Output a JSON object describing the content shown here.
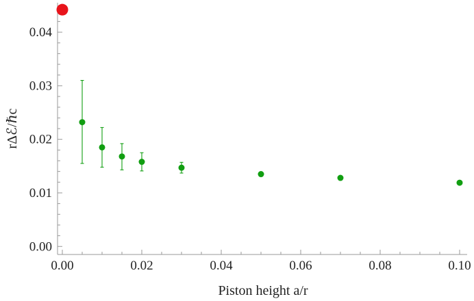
{
  "chart_data": {
    "type": "scatter",
    "xlabel": "Piston height a/r",
    "ylabel": "rΔℰ/ℏc",
    "xlim": [
      0.0,
      0.1
    ],
    "ylim": [
      -0.0015,
      0.0455
    ],
    "x_ticks": [
      "0.00",
      "0.02",
      "0.04",
      "0.06",
      "0.08",
      "0.10"
    ],
    "y_ticks": [
      "0.00",
      "0.01",
      "0.02",
      "0.03",
      "0.04"
    ],
    "grid": false,
    "series": [
      {
        "color": "#e8141b",
        "marker": "large-circle",
        "points": [
          {
            "x": 0.0,
            "y": 0.0442
          }
        ]
      },
      {
        "color": "#119e11",
        "marker": "circle-with-error-bars",
        "points": [
          {
            "x": 0.005,
            "y": 0.0232,
            "err_low": 0.0155,
            "err_high": 0.031
          },
          {
            "x": 0.01,
            "y": 0.0185,
            "err_low": 0.0148,
            "err_high": 0.0222
          },
          {
            "x": 0.015,
            "y": 0.0168,
            "err_low": 0.0143,
            "err_high": 0.0192
          },
          {
            "x": 0.02,
            "y": 0.0158,
            "err_low": 0.0141,
            "err_high": 0.0175
          },
          {
            "x": 0.03,
            "y": 0.0147,
            "err_low": 0.0137,
            "err_high": 0.0157
          },
          {
            "x": 0.05,
            "y": 0.0135,
            "err_low": 0.0131,
            "err_high": 0.0139
          },
          {
            "x": 0.07,
            "y": 0.0128,
            "err_low": 0.0126,
            "err_high": 0.013
          },
          {
            "x": 0.1,
            "y": 0.0119,
            "err_low": 0.0118,
            "err_high": 0.012
          }
        ]
      }
    ]
  }
}
